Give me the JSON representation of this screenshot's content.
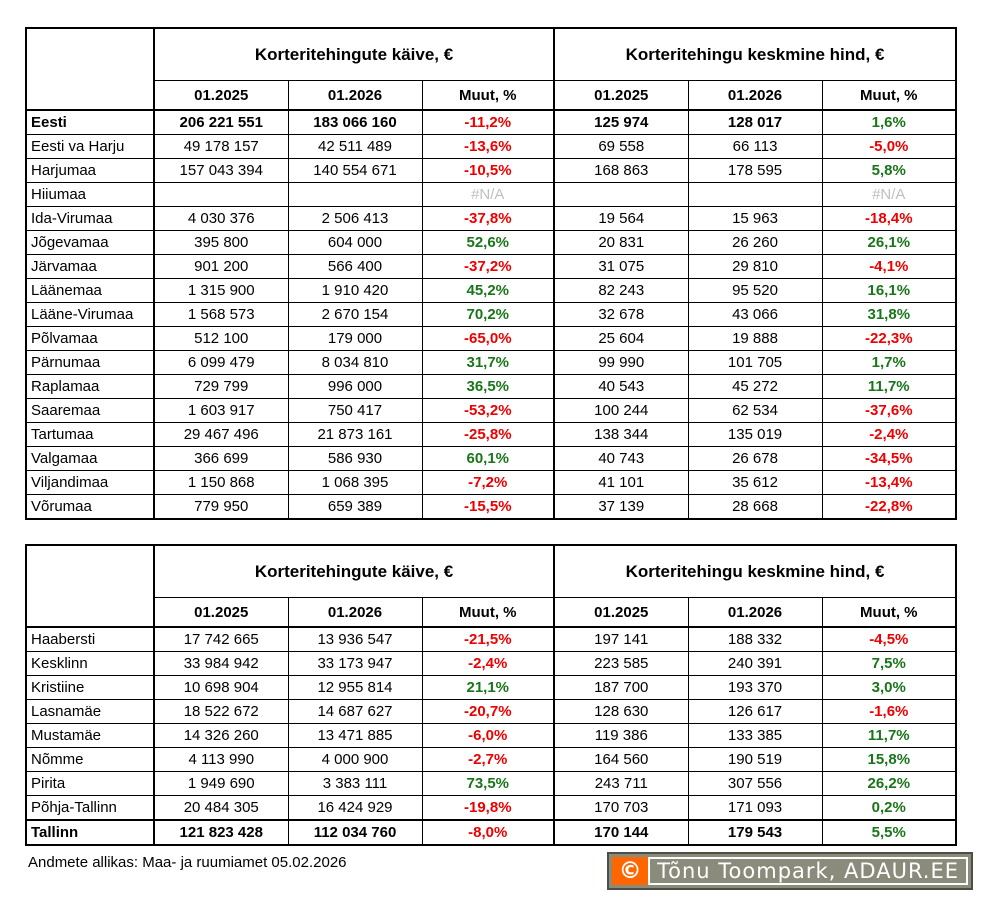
{
  "colors": {
    "negative": "#ee0000",
    "positive": "#1a751a",
    "na": "#bfbfbf",
    "border": "#000000",
    "watermark_bg": "#8b8b7b",
    "watermark_border": "#4e4e44",
    "watermark_orange": "#ff6600",
    "watermark_text": "#ffffff"
  },
  "chart_data": [
    {
      "type": "table",
      "title_groups": [
        "Korteritehingute käive, €",
        "Korteritehingu keskmine hind, €"
      ],
      "columns": [
        "01.2025",
        "01.2026",
        "Muut, %",
        "01.2025",
        "01.2026",
        "Muut, %"
      ],
      "rows": [
        {
          "name": "Eesti",
          "bold": true,
          "values": [
            "206 221 551",
            "183 066 160",
            "-11,2%",
            "125 974",
            "128 017",
            "1,6%"
          ]
        },
        {
          "name": "Eesti va Harju",
          "values": [
            "49 178 157",
            "42 511 489",
            "-13,6%",
            "69 558",
            "66 113",
            "-5,0%"
          ]
        },
        {
          "name": "Harjumaa",
          "values": [
            "157 043 394",
            "140 554 671",
            "-10,5%",
            "168 863",
            "178 595",
            "5,8%"
          ]
        },
        {
          "name": "Hiiumaa",
          "values": [
            "",
            "",
            "#N/A",
            "",
            "",
            "#N/A"
          ]
        },
        {
          "name": "Ida-Virumaa",
          "values": [
            "4 030 376",
            "2 506 413",
            "-37,8%",
            "19 564",
            "15 963",
            "-18,4%"
          ]
        },
        {
          "name": "Jõgevamaa",
          "values": [
            "395 800",
            "604 000",
            "52,6%",
            "20 831",
            "26 260",
            "26,1%"
          ]
        },
        {
          "name": "Järvamaa",
          "values": [
            "901 200",
            "566 400",
            "-37,2%",
            "31 075",
            "29 810",
            "-4,1%"
          ]
        },
        {
          "name": "Läänemaa",
          "values": [
            "1 315 900",
            "1 910 420",
            "45,2%",
            "82 243",
            "95 520",
            "16,1%"
          ]
        },
        {
          "name": "Lääne-Virumaa",
          "values": [
            "1 568 573",
            "2 670 154",
            "70,2%",
            "32 678",
            "43 066",
            "31,8%"
          ]
        },
        {
          "name": "Põlvamaa",
          "values": [
            "512 100",
            "179 000",
            "-65,0%",
            "25 604",
            "19 888",
            "-22,3%"
          ]
        },
        {
          "name": "Pärnumaa",
          "values": [
            "6 099 479",
            "8 034 810",
            "31,7%",
            "99 990",
            "101 705",
            "1,7%"
          ]
        },
        {
          "name": "Raplamaa",
          "values": [
            "729 799",
            "996 000",
            "36,5%",
            "40 543",
            "45 272",
            "11,7%"
          ]
        },
        {
          "name": "Saaremaa",
          "values": [
            "1 603 917",
            "750 417",
            "-53,2%",
            "100 244",
            "62 534",
            "-37,6%"
          ]
        },
        {
          "name": "Tartumaa",
          "values": [
            "29 467 496",
            "21 873 161",
            "-25,8%",
            "138 344",
            "135 019",
            "-2,4%"
          ]
        },
        {
          "name": "Valgamaa",
          "values": [
            "366 699",
            "586 930",
            "60,1%",
            "40 743",
            "26 678",
            "-34,5%"
          ]
        },
        {
          "name": "Viljandimaa",
          "values": [
            "1 150 868",
            "1 068 395",
            "-7,2%",
            "41 101",
            "35 612",
            "-13,4%"
          ]
        },
        {
          "name": "Võrumaa",
          "values": [
            "779 950",
            "659 389",
            "-15,5%",
            "37 139",
            "28 668",
            "-22,8%"
          ]
        }
      ]
    },
    {
      "type": "table",
      "title_groups": [
        "Korteritehingute käive, €",
        "Korteritehingu keskmine hind, €"
      ],
      "columns": [
        "01.2025",
        "01.2026",
        "Muut, %",
        "01.2025",
        "01.2026",
        "Muut, %"
      ],
      "rows": [
        {
          "name": "Haabersti",
          "values": [
            "17 742 665",
            "13 936 547",
            "-21,5%",
            "197 141",
            "188 332",
            "-4,5%"
          ]
        },
        {
          "name": "Kesklinn",
          "values": [
            "33 984 942",
            "33 173 947",
            "-2,4%",
            "223 585",
            "240 391",
            "7,5%"
          ]
        },
        {
          "name": "Kristiine",
          "values": [
            "10 698 904",
            "12 955 814",
            "21,1%",
            "187 700",
            "193 370",
            "3,0%"
          ]
        },
        {
          "name": "Lasnamäe",
          "values": [
            "18 522 672",
            "14 687 627",
            "-20,7%",
            "128 630",
            "126 617",
            "-1,6%"
          ]
        },
        {
          "name": "Mustamäe",
          "values": [
            "14 326 260",
            "13 471 885",
            "-6,0%",
            "119 386",
            "133 385",
            "11,7%"
          ]
        },
        {
          "name": "Nõmme",
          "values": [
            "4 113 990",
            "4 000 900",
            "-2,7%",
            "164 560",
            "190 519",
            "15,8%"
          ]
        },
        {
          "name": "Pirita",
          "values": [
            "1 949 690",
            "3 383 111",
            "73,5%",
            "243 711",
            "307 556",
            "26,2%"
          ]
        },
        {
          "name": "Põhja-Tallinn",
          "values": [
            "20 484 305",
            "16 424 929",
            "-19,8%",
            "170 703",
            "171 093",
            "0,2%"
          ]
        },
        {
          "name": "Tallinn",
          "bold": true,
          "thick_top": true,
          "values": [
            "121 823 428",
            "112 034 760",
            "-8,0%",
            "170 144",
            "179 543",
            "5,5%"
          ]
        }
      ]
    }
  ],
  "footer": {
    "source": "Andmete allikas: Maa- ja ruumiamet 05.02.2026"
  },
  "watermark": {
    "copyright_symbol": "©",
    "text": "Tõnu Toompark, ADAUR.EE"
  }
}
